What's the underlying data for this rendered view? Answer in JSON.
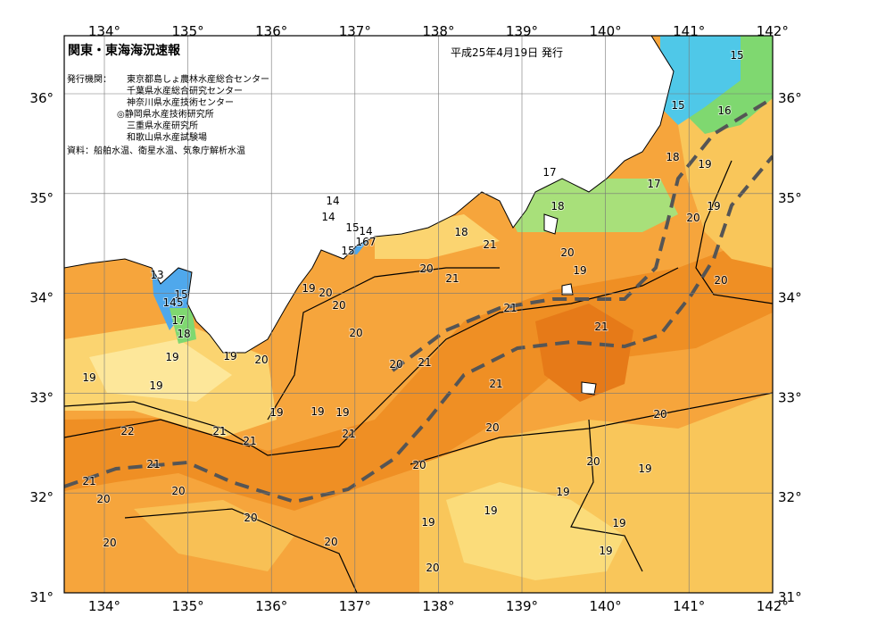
{
  "header": {
    "title": "関東・東海海況速報",
    "date": "平成25年4月19日 発行"
  },
  "issuers": {
    "label": "発行機関：",
    "names": [
      "東京都島しょ農林水産総合センター",
      "千葉県水産総合研究センター",
      "神奈川県水産技術センター",
      "◎静岡県水産技術研究所",
      "三重県水産研究所",
      "和歌山県水産試験場"
    ]
  },
  "source": "資料：船舶水温、衛星水温、気象庁解析水温",
  "axes": {
    "lon_labels": [
      "134°",
      "135°",
      "136°",
      "137°",
      "138°",
      "139°",
      "140°",
      "141°",
      "142°"
    ],
    "lat_labels": [
      "36°",
      "35°",
      "34°",
      "33°",
      "32°",
      "31°"
    ]
  },
  "contour_labels": [
    15,
    15,
    16,
    17,
    18,
    18,
    19,
    17,
    19,
    20,
    18,
    21,
    20,
    19,
    14,
    14,
    15,
    14,
    167,
    15,
    20,
    21,
    19,
    20,
    20,
    21,
    20,
    21,
    20,
    13,
    15,
    145,
    17,
    18,
    19,
    19,
    20,
    20,
    21,
    19,
    19,
    21,
    19,
    19,
    19,
    20,
    22,
    21,
    21,
    21,
    20,
    20,
    20,
    19,
    21,
    21,
    20,
    20,
    19,
    19,
    19,
    20,
    19,
    20,
    20,
    19,
    20
  ]
}
